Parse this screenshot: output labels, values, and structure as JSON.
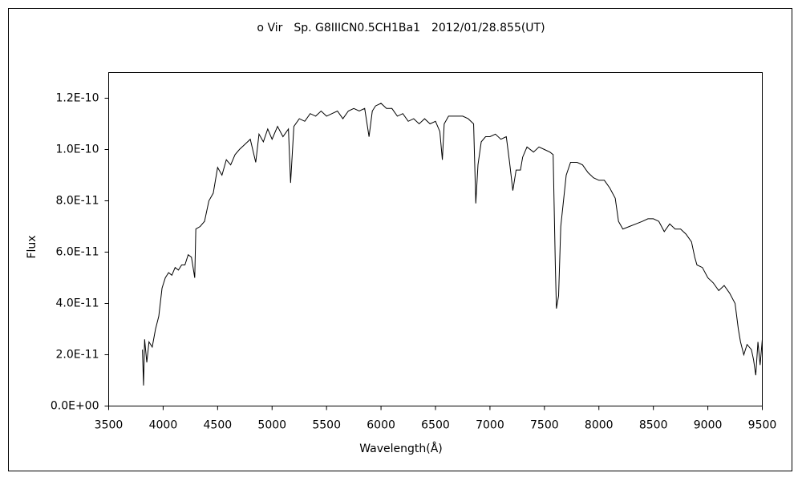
{
  "chart_data": {
    "type": "line",
    "title": "ο Vir　Sp. G8IIICN0.5CH1Ba1　2012/01/28.855(UT)",
    "x_label": "Wavelength(Å)",
    "y_label": "Flux",
    "color": "#000000",
    "xlim": [
      3500,
      9500
    ],
    "xticks": [
      3500,
      4000,
      4500,
      5000,
      5500,
      6000,
      6500,
      7000,
      7500,
      8000,
      8500,
      9000,
      9500
    ],
    "ylim": [
      0,
      1.3e-10
    ],
    "yticks": [
      {
        "value": 0,
        "label": "0.0E+00"
      },
      {
        "value": 2e-11,
        "label": "2.0E-11"
      },
      {
        "value": 4e-11,
        "label": "4.0E-11"
      },
      {
        "value": 6e-11,
        "label": "6.0E-11"
      },
      {
        "value": 8e-11,
        "label": "8.0E-11"
      },
      {
        "value": 1e-10,
        "label": "1.0E-10"
      },
      {
        "value": 1.2e-10,
        "label": "1.2E-10"
      }
    ],
    "grid": false,
    "x": [
      3810,
      3820,
      3830,
      3850,
      3870,
      3900,
      3930,
      3960,
      3990,
      4020,
      4050,
      4080,
      4110,
      4140,
      4170,
      4200,
      4230,
      4260,
      4290,
      4300,
      4340,
      4380,
      4420,
      4460,
      4500,
      4540,
      4580,
      4620,
      4660,
      4700,
      4750,
      4800,
      4850,
      4880,
      4920,
      4960,
      5000,
      5050,
      5100,
      5150,
      5170,
      5200,
      5250,
      5300,
      5350,
      5400,
      5450,
      5500,
      5550,
      5600,
      5650,
      5700,
      5750,
      5800,
      5850,
      5890,
      5920,
      5950,
      6000,
      6050,
      6100,
      6150,
      6200,
      6250,
      6300,
      6350,
      6400,
      6450,
      6500,
      6540,
      6563,
      6580,
      6620,
      6700,
      6750,
      6800,
      6850,
      6870,
      6890,
      6920,
      6960,
      7000,
      7050,
      7100,
      7150,
      7180,
      7210,
      7240,
      7280,
      7300,
      7340,
      7400,
      7450,
      7500,
      7550,
      7580,
      7600,
      7610,
      7630,
      7650,
      7700,
      7740,
      7800,
      7850,
      7900,
      7950,
      8000,
      8050,
      8100,
      8150,
      8180,
      8220,
      8280,
      8340,
      8400,
      8450,
      8500,
      8550,
      8600,
      8650,
      8700,
      8750,
      8800,
      8850,
      8880,
      8900,
      8950,
      9000,
      9050,
      9100,
      9150,
      9200,
      9250,
      9280,
      9300,
      9330,
      9360,
      9400,
      9420,
      9440,
      9460,
      9480,
      9500
    ],
    "values": [
      2.2e-11,
      8e-12,
      2.6e-11,
      1.7e-11,
      2.5e-11,
      2.3e-11,
      3e-11,
      3.5e-11,
      4.6e-11,
      5e-11,
      5.2e-11,
      5.1e-11,
      5.4e-11,
      5.3e-11,
      5.5e-11,
      5.5e-11,
      5.9e-11,
      5.8e-11,
      5e-11,
      6.9e-11,
      7e-11,
      7.2e-11,
      8e-11,
      8.3e-11,
      9.3e-11,
      9e-11,
      9.6e-11,
      9.4e-11,
      9.8e-11,
      1e-10,
      1.02e-10,
      1.04e-10,
      9.5e-11,
      1.06e-10,
      1.03e-10,
      1.08e-10,
      1.04e-10,
      1.09e-10,
      1.05e-10,
      1.08e-10,
      8.7e-11,
      1.09e-10,
      1.12e-10,
      1.11e-10,
      1.14e-10,
      1.13e-10,
      1.15e-10,
      1.13e-10,
      1.14e-10,
      1.15e-10,
      1.12e-10,
      1.15e-10,
      1.16e-10,
      1.15e-10,
      1.16e-10,
      1.05e-10,
      1.15e-10,
      1.17e-10,
      1.18e-10,
      1.16e-10,
      1.16e-10,
      1.13e-10,
      1.14e-10,
      1.11e-10,
      1.12e-10,
      1.1e-10,
      1.12e-10,
      1.1e-10,
      1.11e-10,
      1.07e-10,
      9.6e-11,
      1.1e-10,
      1.13e-10,
      1.13e-10,
      1.13e-10,
      1.12e-10,
      1.1e-10,
      7.9e-11,
      9.4e-11,
      1.03e-10,
      1.05e-10,
      1.05e-10,
      1.06e-10,
      1.04e-10,
      1.05e-10,
      9.5e-11,
      8.4e-11,
      9.2e-11,
      9.2e-11,
      9.7e-11,
      1.01e-10,
      9.9e-11,
      1.01e-10,
      1e-10,
      9.9e-11,
      9.8e-11,
      5.5e-11,
      3.8e-11,
      4.3e-11,
      7e-11,
      9e-11,
      9.5e-11,
      9.5e-11,
      9.4e-11,
      9.1e-11,
      8.9e-11,
      8.8e-11,
      8.8e-11,
      8.5e-11,
      8.1e-11,
      7.2e-11,
      6.9e-11,
      7e-11,
      7.1e-11,
      7.2e-11,
      7.3e-11,
      7.3e-11,
      7.2e-11,
      6.8e-11,
      7.1e-11,
      6.9e-11,
      6.9e-11,
      6.7e-11,
      6.4e-11,
      5.8e-11,
      5.5e-11,
      5.4e-11,
      5e-11,
      4.8e-11,
      4.5e-11,
      4.7e-11,
      4.4e-11,
      4e-11,
      3e-11,
      2.5e-11,
      2e-11,
      2.4e-11,
      2.2e-11,
      1.8e-11,
      1.2e-11,
      2.5e-11,
      1.6e-11,
      2.6e-11
    ]
  }
}
